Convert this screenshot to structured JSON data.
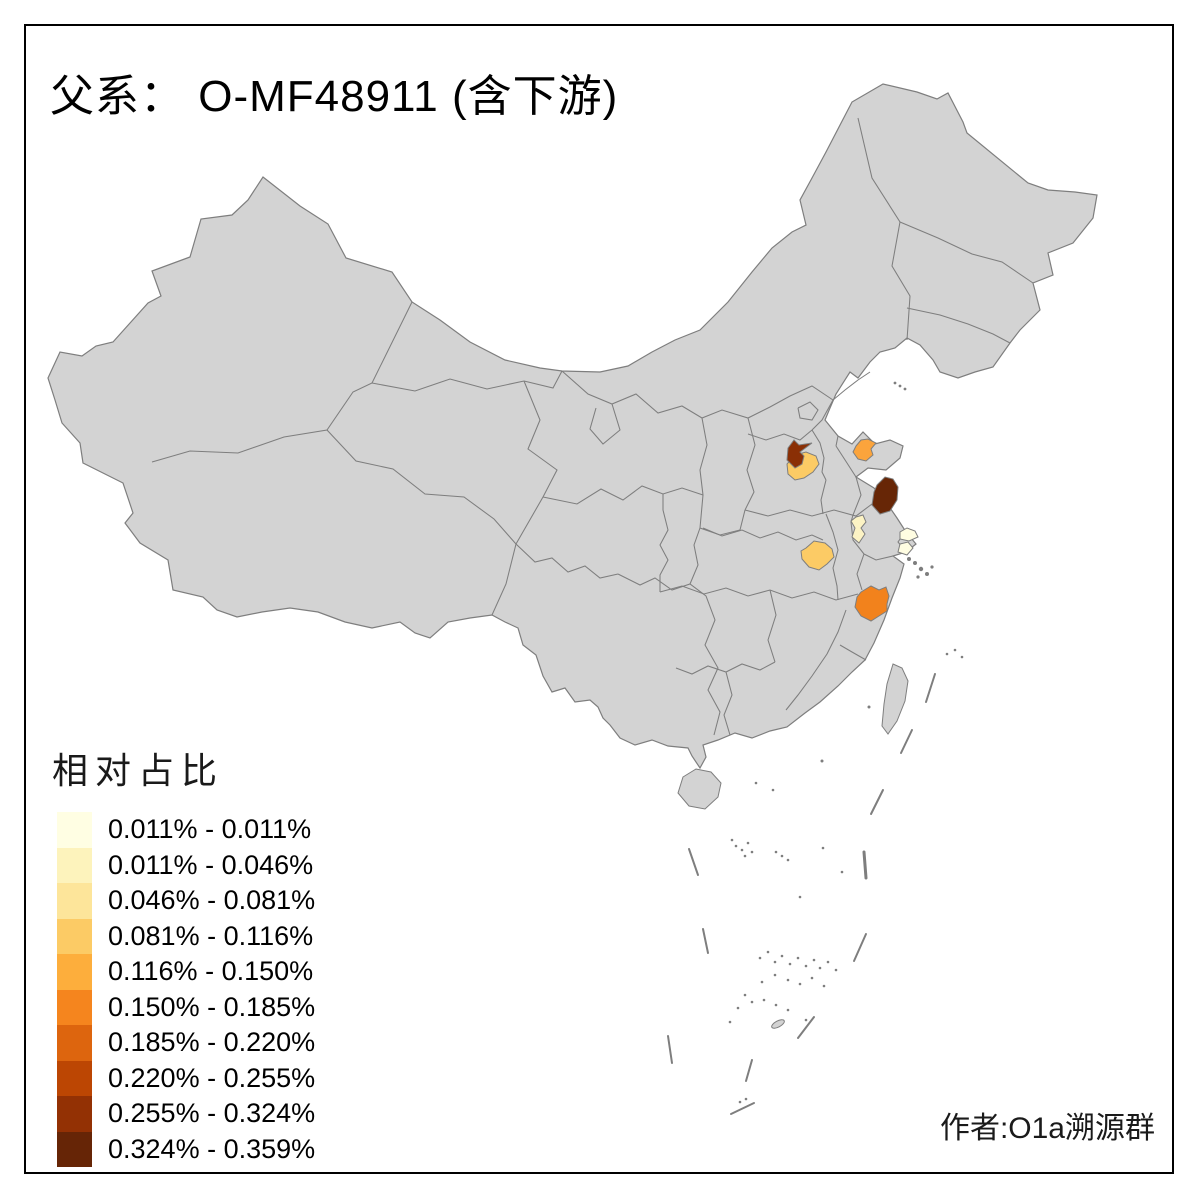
{
  "title": "父系： O-MF48911 (含下游)",
  "attribution": "作者:O1a溯源群",
  "legend": {
    "title": "相对占比",
    "items": [
      {
        "label": "0.011% - 0.011%",
        "color": "#FFFEE3"
      },
      {
        "label": "0.011% - 0.046%",
        "color": "#FDF3BC"
      },
      {
        "label": "0.046% - 0.081%",
        "color": "#FDE59A"
      },
      {
        "label": "0.081% - 0.116%",
        "color": "#FCCB65"
      },
      {
        "label": "0.116% - 0.150%",
        "color": "#FDAE3C"
      },
      {
        "label": "0.150% - 0.185%",
        "color": "#F5851E"
      },
      {
        "label": "0.185% - 0.220%",
        "color": "#DD650E"
      },
      {
        "label": "0.220% - 0.255%",
        "color": "#BC4603"
      },
      {
        "label": "0.255% - 0.324%",
        "color": "#933104"
      },
      {
        "label": "0.324% - 0.359%",
        "color": "#662506"
      }
    ]
  },
  "map": {
    "base_fill": "#d3d3d3",
    "border_color": "#7e7e7e",
    "regions": [
      {
        "name": "henan-north",
        "color": "#8A2F05",
        "value_range": "0.255% - 0.324%"
      },
      {
        "name": "zhengzhou",
        "color": "#FCCB65",
        "value_range": "0.081% - 0.116%"
      },
      {
        "name": "shandong-zibo",
        "color": "#FBA43C",
        "value_range": "0.116% - 0.150%"
      },
      {
        "name": "jiangsu-yancheng",
        "color": "#672606",
        "value_range": "0.324% - 0.359%"
      },
      {
        "name": "anhui-chuzhou",
        "color": "#FCF3C4",
        "value_range": "0.011% - 0.046%"
      },
      {
        "name": "jiangsu-suzhou",
        "color": "#FFFDE2",
        "value_range": "0.011% - 0.011%"
      },
      {
        "name": "shanghai",
        "color": "#FFFDE2",
        "value_range": "0.011% - 0.011%"
      },
      {
        "name": "hubei-east",
        "color": "#FCCB65",
        "value_range": "0.081% - 0.116%"
      },
      {
        "name": "zhejiang-west",
        "color": "#F2821C",
        "value_range": "0.150% - 0.185%"
      }
    ]
  },
  "chart_data": {
    "type": "choropleth_map",
    "title": "父系： O-MF48911 (含下游)",
    "legend_title": "相对占比",
    "legend_position": "bottom-left",
    "classes": [
      {
        "range": "0.011% - 0.011%",
        "color": "#FFFEE3"
      },
      {
        "range": "0.011% - 0.046%",
        "color": "#FDF3BC"
      },
      {
        "range": "0.046% - 0.081%",
        "color": "#FDE59A"
      },
      {
        "range": "0.081% - 0.116%",
        "color": "#FCCB65"
      },
      {
        "range": "0.116% - 0.150%",
        "color": "#FDAE3C"
      },
      {
        "range": "0.150% - 0.185%",
        "color": "#F5851E"
      },
      {
        "range": "0.185% - 0.220%",
        "color": "#DD650E"
      },
      {
        "range": "0.220% - 0.255%",
        "color": "#BC4603"
      },
      {
        "range": "0.255% - 0.324%",
        "color": "#933104"
      },
      {
        "range": "0.324% - 0.359%",
        "color": "#662506"
      }
    ],
    "highlighted_regions": [
      {
        "name": "henan-north",
        "class_index": 8
      },
      {
        "name": "zhengzhou",
        "class_index": 3
      },
      {
        "name": "shandong-zibo",
        "class_index": 4
      },
      {
        "name": "jiangsu-yancheng",
        "class_index": 9
      },
      {
        "name": "anhui-chuzhou",
        "class_index": 1
      },
      {
        "name": "jiangsu-suzhou",
        "class_index": 0
      },
      {
        "name": "shanghai",
        "class_index": 0
      },
      {
        "name": "hubei-east",
        "class_index": 3
      },
      {
        "name": "zhejiang-west",
        "class_index": 5
      }
    ],
    "base_region_note": "all other provinces/prefectures shown in neutral gray"
  }
}
